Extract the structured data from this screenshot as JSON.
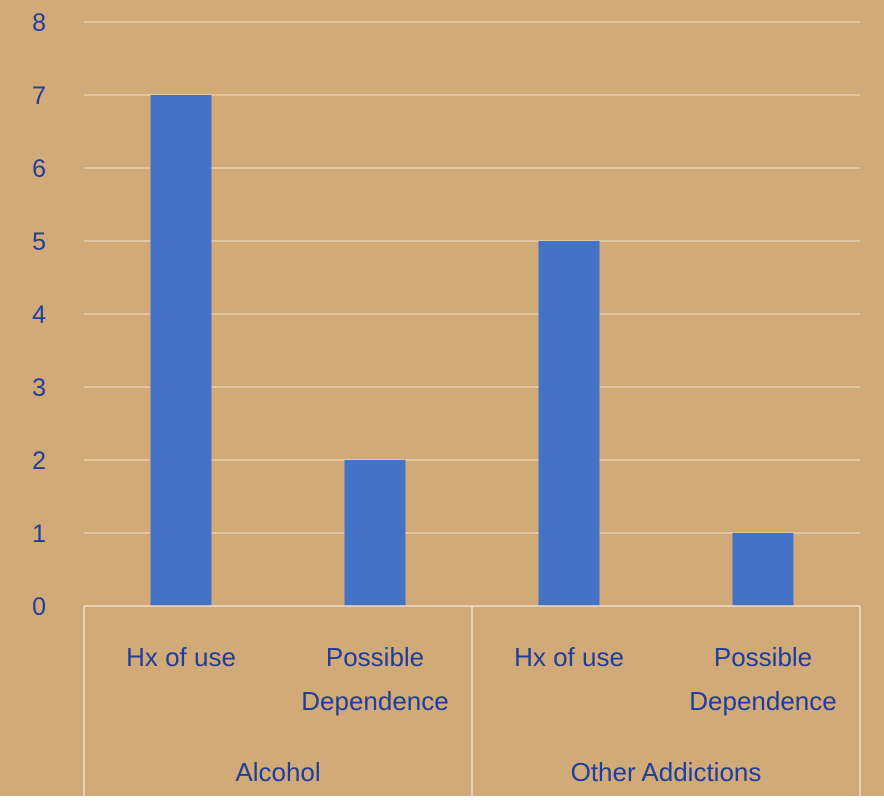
{
  "colors": {
    "background": "#D2AA78",
    "bar": "#4472C4",
    "gridline": "#EDE0CC",
    "axis": "#EDE0CC",
    "text": "#1F3E9B"
  },
  "chart_data": {
    "type": "bar",
    "title": "",
    "xlabel": "",
    "ylabel": "",
    "ylim": [
      0,
      8
    ],
    "yticks": [
      "0",
      "1",
      "2",
      "3",
      "4",
      "5",
      "6",
      "7",
      "8"
    ],
    "grid": true,
    "legend": "none",
    "groups": [
      {
        "label": "Alcohol",
        "categories": [
          "Hx of use",
          "Possible Dependence"
        ]
      },
      {
        "label": "Other Addictions",
        "categories": [
          "Hx of use",
          "Possible Dependence"
        ]
      }
    ],
    "categories": [
      "Hx of use",
      "Possible Dependence",
      "Hx of use",
      "Possible Dependence"
    ],
    "values": [
      7,
      2,
      5,
      1
    ]
  }
}
